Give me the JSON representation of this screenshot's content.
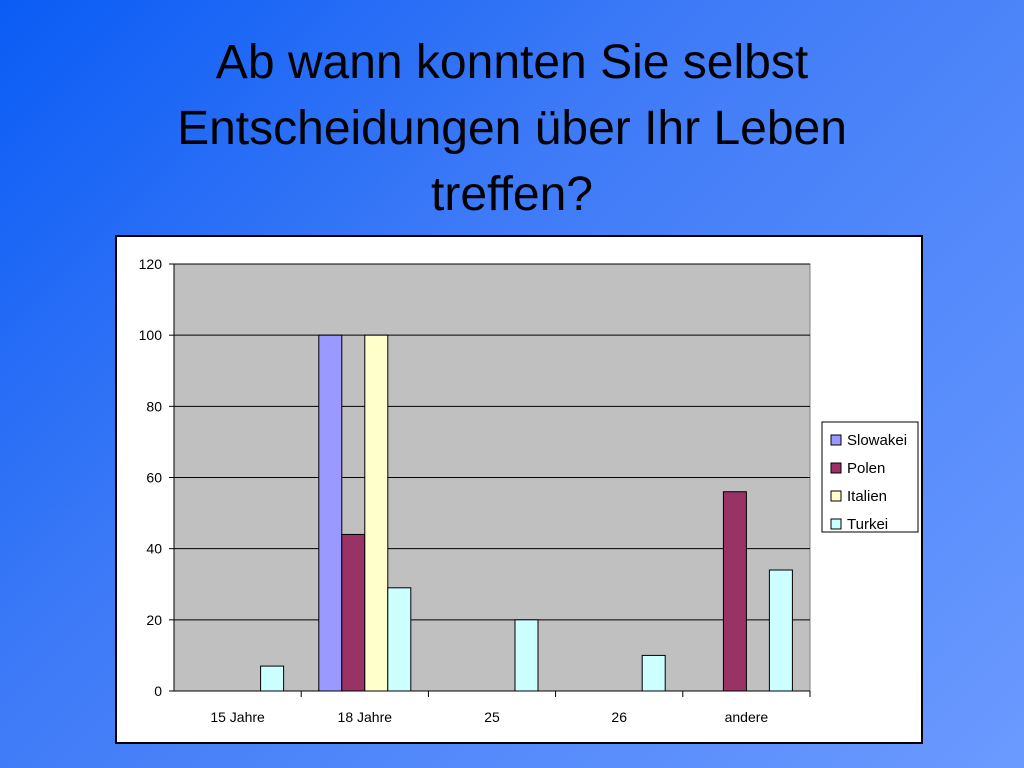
{
  "slide": {
    "title_line1": "Ab wann konnten Sie selbst",
    "title_line2": "Entscheidungen über Ihr Leben",
    "title_line3": "treffen?"
  },
  "chart_data": {
    "type": "bar",
    "categories": [
      "15 Jahre",
      "18 Jahre",
      "25",
      "26",
      "andere"
    ],
    "ylim": [
      0,
      120
    ],
    "yticks": [
      0,
      20,
      40,
      60,
      80,
      100,
      120
    ],
    "grid": true,
    "legend_position": "right",
    "series": [
      {
        "name": "Slowakei",
        "color": "#9999ff",
        "values": [
          0,
          100,
          0,
          0,
          0
        ]
      },
      {
        "name": "Polen",
        "color": "#993366",
        "values": [
          0,
          44,
          0,
          0,
          56
        ]
      },
      {
        "name": "Italien",
        "color": "#ffffcc",
        "values": [
          0,
          100,
          0,
          0,
          0
        ]
      },
      {
        "name": "Turkei",
        "color": "#ccffff",
        "values": [
          7,
          29,
          20,
          10,
          34
        ]
      }
    ],
    "plot_background": "#c0c0c0"
  }
}
